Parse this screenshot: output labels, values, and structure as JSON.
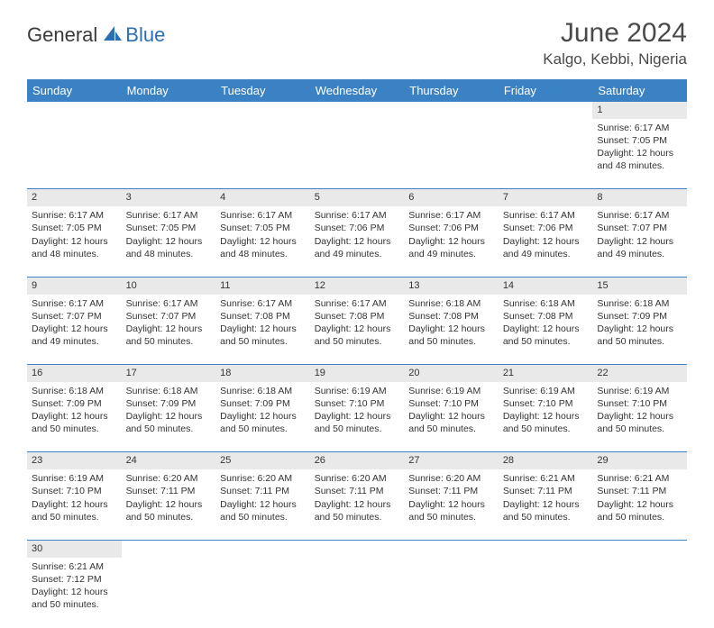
{
  "brand": {
    "part1": "General",
    "part2": "Blue"
  },
  "title": "June 2024",
  "location": "Kalgo, Kebbi, Nigeria",
  "colors": {
    "header_bg": "#3b82c4",
    "header_text": "#ffffff",
    "daynum_bg": "#e9e9e9",
    "row_border": "#3b82c4",
    "brand_blue": "#2a6fb5",
    "text": "#333333"
  },
  "weekdays": [
    "Sunday",
    "Monday",
    "Tuesday",
    "Wednesday",
    "Thursday",
    "Friday",
    "Saturday"
  ],
  "weeks": [
    {
      "nums": [
        "",
        "",
        "",
        "",
        "",
        "",
        "1"
      ],
      "cells": [
        null,
        null,
        null,
        null,
        null,
        null,
        {
          "sunrise": "Sunrise: 6:17 AM",
          "sunset": "Sunset: 7:05 PM",
          "daylight1": "Daylight: 12 hours",
          "daylight2": "and 48 minutes."
        }
      ]
    },
    {
      "nums": [
        "2",
        "3",
        "4",
        "5",
        "6",
        "7",
        "8"
      ],
      "cells": [
        {
          "sunrise": "Sunrise: 6:17 AM",
          "sunset": "Sunset: 7:05 PM",
          "daylight1": "Daylight: 12 hours",
          "daylight2": "and 48 minutes."
        },
        {
          "sunrise": "Sunrise: 6:17 AM",
          "sunset": "Sunset: 7:05 PM",
          "daylight1": "Daylight: 12 hours",
          "daylight2": "and 48 minutes."
        },
        {
          "sunrise": "Sunrise: 6:17 AM",
          "sunset": "Sunset: 7:05 PM",
          "daylight1": "Daylight: 12 hours",
          "daylight2": "and 48 minutes."
        },
        {
          "sunrise": "Sunrise: 6:17 AM",
          "sunset": "Sunset: 7:06 PM",
          "daylight1": "Daylight: 12 hours",
          "daylight2": "and 49 minutes."
        },
        {
          "sunrise": "Sunrise: 6:17 AM",
          "sunset": "Sunset: 7:06 PM",
          "daylight1": "Daylight: 12 hours",
          "daylight2": "and 49 minutes."
        },
        {
          "sunrise": "Sunrise: 6:17 AM",
          "sunset": "Sunset: 7:06 PM",
          "daylight1": "Daylight: 12 hours",
          "daylight2": "and 49 minutes."
        },
        {
          "sunrise": "Sunrise: 6:17 AM",
          "sunset": "Sunset: 7:07 PM",
          "daylight1": "Daylight: 12 hours",
          "daylight2": "and 49 minutes."
        }
      ]
    },
    {
      "nums": [
        "9",
        "10",
        "11",
        "12",
        "13",
        "14",
        "15"
      ],
      "cells": [
        {
          "sunrise": "Sunrise: 6:17 AM",
          "sunset": "Sunset: 7:07 PM",
          "daylight1": "Daylight: 12 hours",
          "daylight2": "and 49 minutes."
        },
        {
          "sunrise": "Sunrise: 6:17 AM",
          "sunset": "Sunset: 7:07 PM",
          "daylight1": "Daylight: 12 hours",
          "daylight2": "and 50 minutes."
        },
        {
          "sunrise": "Sunrise: 6:17 AM",
          "sunset": "Sunset: 7:08 PM",
          "daylight1": "Daylight: 12 hours",
          "daylight2": "and 50 minutes."
        },
        {
          "sunrise": "Sunrise: 6:17 AM",
          "sunset": "Sunset: 7:08 PM",
          "daylight1": "Daylight: 12 hours",
          "daylight2": "and 50 minutes."
        },
        {
          "sunrise": "Sunrise: 6:18 AM",
          "sunset": "Sunset: 7:08 PM",
          "daylight1": "Daylight: 12 hours",
          "daylight2": "and 50 minutes."
        },
        {
          "sunrise": "Sunrise: 6:18 AM",
          "sunset": "Sunset: 7:08 PM",
          "daylight1": "Daylight: 12 hours",
          "daylight2": "and 50 minutes."
        },
        {
          "sunrise": "Sunrise: 6:18 AM",
          "sunset": "Sunset: 7:09 PM",
          "daylight1": "Daylight: 12 hours",
          "daylight2": "and 50 minutes."
        }
      ]
    },
    {
      "nums": [
        "16",
        "17",
        "18",
        "19",
        "20",
        "21",
        "22"
      ],
      "cells": [
        {
          "sunrise": "Sunrise: 6:18 AM",
          "sunset": "Sunset: 7:09 PM",
          "daylight1": "Daylight: 12 hours",
          "daylight2": "and 50 minutes."
        },
        {
          "sunrise": "Sunrise: 6:18 AM",
          "sunset": "Sunset: 7:09 PM",
          "daylight1": "Daylight: 12 hours",
          "daylight2": "and 50 minutes."
        },
        {
          "sunrise": "Sunrise: 6:18 AM",
          "sunset": "Sunset: 7:09 PM",
          "daylight1": "Daylight: 12 hours",
          "daylight2": "and 50 minutes."
        },
        {
          "sunrise": "Sunrise: 6:19 AM",
          "sunset": "Sunset: 7:10 PM",
          "daylight1": "Daylight: 12 hours",
          "daylight2": "and 50 minutes."
        },
        {
          "sunrise": "Sunrise: 6:19 AM",
          "sunset": "Sunset: 7:10 PM",
          "daylight1": "Daylight: 12 hours",
          "daylight2": "and 50 minutes."
        },
        {
          "sunrise": "Sunrise: 6:19 AM",
          "sunset": "Sunset: 7:10 PM",
          "daylight1": "Daylight: 12 hours",
          "daylight2": "and 50 minutes."
        },
        {
          "sunrise": "Sunrise: 6:19 AM",
          "sunset": "Sunset: 7:10 PM",
          "daylight1": "Daylight: 12 hours",
          "daylight2": "and 50 minutes."
        }
      ]
    },
    {
      "nums": [
        "23",
        "24",
        "25",
        "26",
        "27",
        "28",
        "29"
      ],
      "cells": [
        {
          "sunrise": "Sunrise: 6:19 AM",
          "sunset": "Sunset: 7:10 PM",
          "daylight1": "Daylight: 12 hours",
          "daylight2": "and 50 minutes."
        },
        {
          "sunrise": "Sunrise: 6:20 AM",
          "sunset": "Sunset: 7:11 PM",
          "daylight1": "Daylight: 12 hours",
          "daylight2": "and 50 minutes."
        },
        {
          "sunrise": "Sunrise: 6:20 AM",
          "sunset": "Sunset: 7:11 PM",
          "daylight1": "Daylight: 12 hours",
          "daylight2": "and 50 minutes."
        },
        {
          "sunrise": "Sunrise: 6:20 AM",
          "sunset": "Sunset: 7:11 PM",
          "daylight1": "Daylight: 12 hours",
          "daylight2": "and 50 minutes."
        },
        {
          "sunrise": "Sunrise: 6:20 AM",
          "sunset": "Sunset: 7:11 PM",
          "daylight1": "Daylight: 12 hours",
          "daylight2": "and 50 minutes."
        },
        {
          "sunrise": "Sunrise: 6:21 AM",
          "sunset": "Sunset: 7:11 PM",
          "daylight1": "Daylight: 12 hours",
          "daylight2": "and 50 minutes."
        },
        {
          "sunrise": "Sunrise: 6:21 AM",
          "sunset": "Sunset: 7:11 PM",
          "daylight1": "Daylight: 12 hours",
          "daylight2": "and 50 minutes."
        }
      ]
    },
    {
      "nums": [
        "30",
        "",
        "",
        "",
        "",
        "",
        ""
      ],
      "cells": [
        {
          "sunrise": "Sunrise: 6:21 AM",
          "sunset": "Sunset: 7:12 PM",
          "daylight1": "Daylight: 12 hours",
          "daylight2": "and 50 minutes."
        },
        null,
        null,
        null,
        null,
        null,
        null
      ]
    }
  ]
}
